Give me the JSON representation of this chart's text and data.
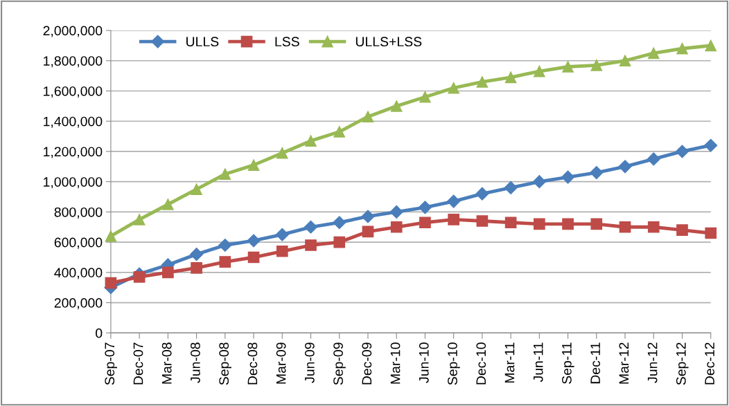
{
  "chart_data": {
    "type": "line",
    "categories": [
      "Sep-07",
      "Dec-07",
      "Mar-08",
      "Jun-08",
      "Sep-08",
      "Dec-08",
      "Mar-09",
      "Jun-09",
      "Sep-09",
      "Dec-09",
      "Mar-10",
      "Jun-10",
      "Sep-10",
      "Dec-10",
      "Mar-11",
      "Jun-11",
      "Sep-11",
      "Dec-11",
      "Mar-12",
      "Jun-12",
      "Sep-12",
      "Dec-12"
    ],
    "series": [
      {
        "name": "ULLS",
        "color": "#4a7ebb",
        "marker": "diamond",
        "values": [
          300000,
          390000,
          450000,
          520000,
          580000,
          610000,
          650000,
          700000,
          730000,
          770000,
          800000,
          830000,
          870000,
          920000,
          960000,
          1000000,
          1030000,
          1060000,
          1100000,
          1150000,
          1200000,
          1240000
        ]
      },
      {
        "name": "LSS",
        "color": "#be4b48",
        "marker": "square",
        "values": [
          330000,
          370000,
          400000,
          430000,
          470000,
          500000,
          540000,
          580000,
          600000,
          670000,
          700000,
          730000,
          750000,
          740000,
          730000,
          720000,
          720000,
          720000,
          700000,
          700000,
          680000,
          660000
        ]
      },
      {
        "name": "ULLS+LSS",
        "color": "#98b954",
        "marker": "triangle",
        "values": [
          640000,
          750000,
          850000,
          950000,
          1050000,
          1110000,
          1190000,
          1270000,
          1330000,
          1430000,
          1500000,
          1560000,
          1620000,
          1660000,
          1690000,
          1730000,
          1760000,
          1770000,
          1800000,
          1850000,
          1880000,
          1900000
        ]
      }
    ],
    "ylim": [
      0,
      2000000
    ],
    "yticks": [
      {
        "value": 0,
        "label": "0"
      },
      {
        "value": 200000,
        "label": "200,000"
      },
      {
        "value": 400000,
        "label": "400,000"
      },
      {
        "value": 600000,
        "label": "600,000"
      },
      {
        "value": 800000,
        "label": "800,000"
      },
      {
        "value": 1000000,
        "label": "1,000,000"
      },
      {
        "value": 1200000,
        "label": "1,200,000"
      },
      {
        "value": 1400000,
        "label": "1,400,000"
      },
      {
        "value": 1600000,
        "label": "1,600,000"
      },
      {
        "value": 1800000,
        "label": "1,800,000"
      },
      {
        "value": 2000000,
        "label": "2,000,000"
      }
    ],
    "grid": "y",
    "legend": "top left",
    "line_style": "solid"
  }
}
